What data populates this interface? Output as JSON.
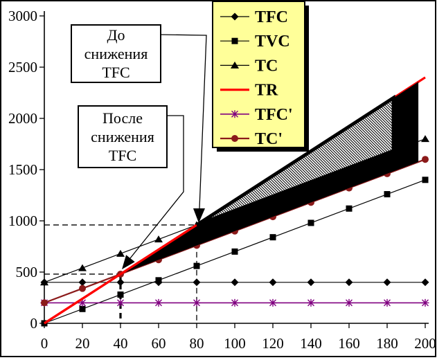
{
  "frame": {
    "background": "#FFFFFF",
    "border_color": "#000000"
  },
  "legend": {
    "background": "#FFFF99",
    "border_color": "#000000",
    "shadow_color": "#000000",
    "items": [
      {
        "label": "TFC",
        "marker": "diamond",
        "color": "#000000",
        "line_width": 1.2
      },
      {
        "label": "TVC",
        "marker": "square",
        "color": "#000000",
        "line_width": 1.2
      },
      {
        "label": "TC",
        "marker": "triangle",
        "color": "#000000",
        "line_width": 1.2
      },
      {
        "label": "TR",
        "marker": "none",
        "color": "#FF0000",
        "line_width": 3.2
      },
      {
        "label": "TFC'",
        "marker": "asterisk",
        "color": "#800080",
        "line_width": 1.6
      },
      {
        "label": "TC'",
        "marker": "circle",
        "color": "#8B1A1A",
        "line_width": 2.2
      }
    ]
  },
  "annotations": {
    "before": {
      "lines": [
        "До",
        "снижения",
        "TFC"
      ]
    },
    "after": {
      "lines": [
        "После",
        "снижения",
        "TFC"
      ]
    }
  },
  "chart_data": {
    "type": "line",
    "title": "",
    "xlabel": "",
    "ylabel": "",
    "xlim": [
      0,
      200
    ],
    "ylim": [
      0,
      3000
    ],
    "grid": false,
    "legend_position": "top-right",
    "x_ticks": [
      0,
      20,
      40,
      60,
      80,
      100,
      120,
      140,
      160,
      180,
      200
    ],
    "y_ticks": [
      0,
      500,
      1000,
      1500,
      2000,
      2500,
      3000
    ],
    "x": [
      0,
      20,
      40,
      60,
      80,
      100,
      120,
      140,
      160,
      180,
      200
    ],
    "series": [
      {
        "name": "TFC",
        "values": [
          400,
          400,
          400,
          400,
          400,
          400,
          400,
          400,
          400,
          400,
          400
        ],
        "color": "#000000",
        "marker": "diamond",
        "width": 1.2
      },
      {
        "name": "TVC",
        "values": [
          0,
          140,
          280,
          420,
          560,
          700,
          840,
          980,
          1120,
          1260,
          1400
        ],
        "color": "#000000",
        "marker": "square",
        "width": 1.2
      },
      {
        "name": "TC",
        "values": [
          400,
          540,
          680,
          820,
          960,
          1100,
          1240,
          1380,
          1520,
          1660,
          1800
        ],
        "color": "#000000",
        "marker": "triangle",
        "width": 1.2
      },
      {
        "name": "TFC'",
        "values": [
          200,
          200,
          200,
          200,
          200,
          200,
          200,
          200,
          200,
          200,
          200
        ],
        "color": "#800080",
        "marker": "asterisk",
        "width": 1.6
      },
      {
        "name": "TC'",
        "values": [
          200,
          340,
          480,
          620,
          760,
          900,
          1040,
          1180,
          1320,
          1460,
          1600
        ],
        "color": "#8B1A1A",
        "marker": "circle",
        "width": 2.2
      },
      {
        "name": "TR",
        "values": [
          0,
          240,
          480,
          720,
          960,
          1200,
          1440,
          1680,
          1920,
          2160,
          2400
        ],
        "color": "#FF0000",
        "marker": "none",
        "width": 3.2
      }
    ],
    "regions": [
      {
        "name": "profit-after-tfc-reduction",
        "style": "solid-black",
        "points": [
          [
            40,
            480
          ],
          [
            196.4,
            2356
          ],
          [
            196.4,
            1575
          ]
        ]
      },
      {
        "name": "profit-before-tfc-reduction",
        "style": "hatched",
        "points": [
          [
            80,
            960
          ],
          [
            183.3,
            2200
          ],
          [
            183.3,
            1683
          ]
        ]
      }
    ],
    "tr_overlay_segment": [
      [
        0,
        0
      ],
      [
        91,
        1092
      ]
    ],
    "guides": [
      {
        "x": 80,
        "y": 960,
        "bold_vertical": false
      },
      {
        "x": 40,
        "y": 480,
        "bold_vertical": true
      }
    ],
    "break_even_before_reduction": {
      "x": 80,
      "y": 960
    },
    "break_even_after_reduction": {
      "x": 40,
      "y": 480
    }
  }
}
